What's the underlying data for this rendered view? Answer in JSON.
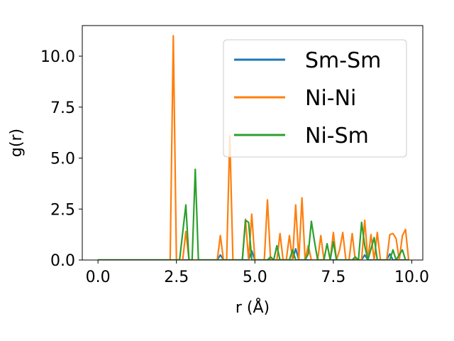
{
  "chart_data": {
    "type": "line",
    "xlabel": "r (Å)",
    "ylabel": "g(r)",
    "xlim": [
      -0.5,
      10.35
    ],
    "ylim": [
      0,
      11.5
    ],
    "xticks": [
      0.0,
      2.5,
      5.0,
      7.5,
      10.0
    ],
    "xtick_labels": [
      "0.0",
      "2.5",
      "5.0",
      "7.5",
      "10.0"
    ],
    "yticks": [
      0.0,
      2.5,
      5.0,
      7.5,
      10.0
    ],
    "ytick_labels": [
      "0.0",
      "2.5",
      "5.0",
      "7.5",
      "10.0"
    ],
    "grid": false,
    "legend_position": "top-right",
    "series": [
      {
        "name": "Sm-Sm",
        "color": "#1f77b4",
        "points": [
          [
            0.0,
            0
          ],
          [
            3.8,
            0
          ],
          [
            3.9,
            0.25
          ],
          [
            4.0,
            0
          ],
          [
            4.8,
            0
          ],
          [
            4.9,
            0.45
          ],
          [
            5.0,
            0
          ],
          [
            6.2,
            0
          ],
          [
            6.3,
            0.55
          ],
          [
            6.4,
            0
          ],
          [
            8.4,
            0
          ],
          [
            8.5,
            0.25
          ],
          [
            8.6,
            0
          ],
          [
            9.2,
            0
          ],
          [
            9.3,
            0.3
          ],
          [
            9.4,
            0
          ],
          [
            9.9,
            0
          ]
        ]
      },
      {
        "name": "Ni-Ni",
        "color": "#ff7f0e",
        "points": [
          [
            0.0,
            0
          ],
          [
            2.3,
            0
          ],
          [
            2.4,
            11.0
          ],
          [
            2.5,
            0
          ],
          [
            2.7,
            0
          ],
          [
            2.8,
            1.4
          ],
          [
            2.9,
            0
          ],
          [
            3.8,
            0
          ],
          [
            3.9,
            1.2
          ],
          [
            4.0,
            0
          ],
          [
            4.1,
            0
          ],
          [
            4.2,
            6.1
          ],
          [
            4.3,
            0
          ],
          [
            4.6,
            0
          ],
          [
            4.7,
            2.0
          ],
          [
            4.8,
            0
          ],
          [
            4.9,
            2.25
          ],
          [
            5.0,
            0
          ],
          [
            5.3,
            0
          ],
          [
            5.4,
            2.95
          ],
          [
            5.5,
            0
          ],
          [
            5.7,
            0
          ],
          [
            5.8,
            1.3
          ],
          [
            5.9,
            0
          ],
          [
            6.0,
            0
          ],
          [
            6.1,
            1.2
          ],
          [
            6.2,
            0
          ],
          [
            6.3,
            2.7
          ],
          [
            6.4,
            0
          ],
          [
            6.5,
            3.05
          ],
          [
            6.6,
            0
          ],
          [
            6.7,
            0.7
          ],
          [
            6.8,
            0
          ],
          [
            7.0,
            0
          ],
          [
            7.1,
            1.2
          ],
          [
            7.2,
            0
          ],
          [
            7.4,
            0
          ],
          [
            7.5,
            1.35
          ],
          [
            7.6,
            0
          ],
          [
            7.7,
            0.5
          ],
          [
            7.8,
            1.35
          ],
          [
            7.9,
            0
          ],
          [
            8.0,
            0
          ],
          [
            8.1,
            1.3
          ],
          [
            8.2,
            0
          ],
          [
            8.4,
            0
          ],
          [
            8.5,
            1.95
          ],
          [
            8.6,
            0
          ],
          [
            8.7,
            1.25
          ],
          [
            8.8,
            0
          ],
          [
            8.9,
            1.35
          ],
          [
            9.0,
            0
          ],
          [
            9.2,
            0
          ],
          [
            9.3,
            1.25
          ],
          [
            9.4,
            1.3
          ],
          [
            9.5,
            1.05
          ],
          [
            9.6,
            0
          ],
          [
            9.7,
            1.2
          ],
          [
            9.8,
            1.5
          ],
          [
            9.9,
            0
          ]
        ]
      },
      {
        "name": "Ni-Sm",
        "color": "#2ca02c",
        "points": [
          [
            0.0,
            0
          ],
          [
            2.6,
            0
          ],
          [
            2.8,
            2.7
          ],
          [
            2.9,
            0
          ],
          [
            3.0,
            0
          ],
          [
            3.1,
            4.45
          ],
          [
            3.2,
            0
          ],
          [
            4.6,
            0
          ],
          [
            4.7,
            1.95
          ],
          [
            4.8,
            1.85
          ],
          [
            4.9,
            0
          ],
          [
            5.4,
            0
          ],
          [
            5.5,
            0.15
          ],
          [
            5.6,
            0
          ],
          [
            5.7,
            0.7
          ],
          [
            5.8,
            0
          ],
          [
            6.1,
            0
          ],
          [
            6.2,
            0.5
          ],
          [
            6.3,
            0
          ],
          [
            6.6,
            0
          ],
          [
            6.7,
            0.3
          ],
          [
            6.8,
            1.9
          ],
          [
            6.9,
            0.9
          ],
          [
            7.0,
            0
          ],
          [
            7.2,
            0
          ],
          [
            7.3,
            0.8
          ],
          [
            7.4,
            0
          ],
          [
            7.5,
            0.9
          ],
          [
            7.6,
            0
          ],
          [
            8.1,
            0
          ],
          [
            8.2,
            0.15
          ],
          [
            8.3,
            0
          ],
          [
            8.4,
            1.85
          ],
          [
            8.5,
            0.7
          ],
          [
            8.6,
            0
          ],
          [
            8.8,
            1.1
          ],
          [
            8.9,
            0
          ],
          [
            9.3,
            0
          ],
          [
            9.4,
            0.5
          ],
          [
            9.5,
            0
          ],
          [
            9.7,
            0.5
          ],
          [
            9.8,
            0
          ],
          [
            9.9,
            0
          ]
        ]
      }
    ]
  }
}
